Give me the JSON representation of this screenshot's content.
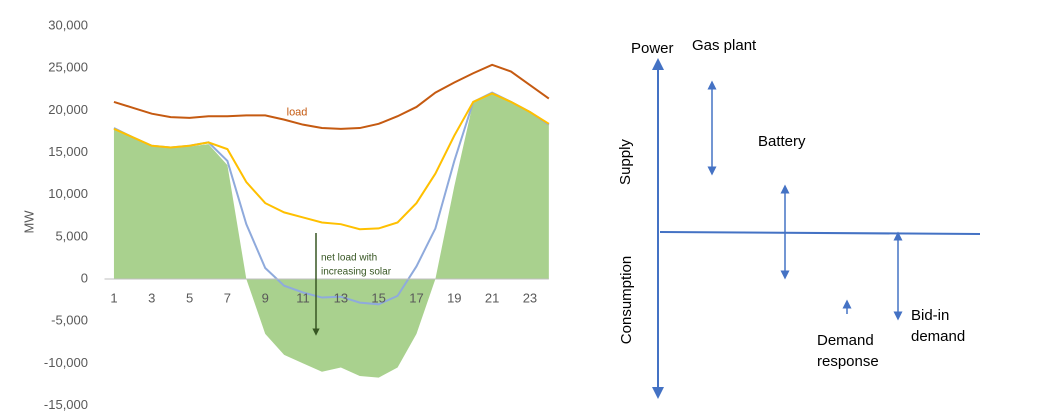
{
  "chart_data": {
    "type": "line",
    "y_label": "MW",
    "x": [
      1,
      2,
      3,
      4,
      5,
      6,
      7,
      8,
      9,
      10,
      11,
      12,
      13,
      14,
      15,
      16,
      17,
      18,
      19,
      20,
      21,
      22,
      23,
      24
    ],
    "xlim": [
      0.5,
      24.5
    ],
    "xticks": [
      1,
      3,
      5,
      7,
      9,
      11,
      13,
      15,
      17,
      19,
      21,
      23
    ],
    "ylim": [
      -15000,
      30000
    ],
    "yticks": [
      {
        "value": -15000,
        "label": "-15,000"
      },
      {
        "value": -10000,
        "label": "-10,000"
      },
      {
        "value": -5000,
        "label": "-5,000"
      },
      0,
      {
        "value": 5000,
        "label": "5,000"
      },
      {
        "value": 10000,
        "label": "10,000"
      },
      {
        "value": 15000,
        "label": "15,000"
      },
      {
        "value": 20000,
        "label": "20,000"
      },
      {
        "value": 25000,
        "label": "25,000"
      },
      {
        "value": 30000,
        "label": "30,000"
      }
    ],
    "grid": false,
    "annotation": [
      "net load with",
      "increasing solar"
    ],
    "series": [
      {
        "type": "area",
        "color": "#a9d18e",
        "values": [
          17800,
          16700,
          15800,
          15600,
          15700,
          16000,
          13500,
          0,
          -6500,
          -9000,
          -10000,
          -11000,
          -10500,
          -11500,
          -11700,
          -10500,
          -6500,
          0,
          11000,
          21000,
          22000,
          21000,
          19700,
          18300
        ]
      },
      {
        "type": "line",
        "color": "#8faadc",
        "values": [
          17900,
          16800,
          15800,
          15600,
          15800,
          16200,
          14000,
          6500,
          1300,
          -800,
          -1600,
          -2200,
          -2100,
          -2800,
          -3000,
          -2000,
          1500,
          6000,
          14000,
          21000,
          22100,
          21000,
          19800,
          18300
        ]
      },
      {
        "type": "line",
        "color": "#ffc000",
        "values": [
          17800,
          16800,
          15800,
          15600,
          15800,
          16200,
          15400,
          11500,
          9000,
          7900,
          7300,
          6700,
          6500,
          5900,
          6000,
          6700,
          9000,
          12500,
          17000,
          21000,
          22000,
          21000,
          19800,
          18400
        ]
      },
      {
        "type": "line",
        "name": "load",
        "color": "#c55a11",
        "values": [
          21000,
          20300,
          19600,
          19200,
          19100,
          19300,
          19300,
          19400,
          19400,
          18900,
          18300,
          17900,
          17800,
          17900,
          18400,
          19300,
          20400,
          22100,
          23300,
          24400,
          25400,
          24600,
          23000,
          21400
        ]
      }
    ]
  },
  "diagram": {
    "power": "Power",
    "supply": "Supply",
    "consumption": "Consumption",
    "gas_plant": "Gas plant",
    "battery": "Battery",
    "demand_response": [
      "Demand",
      "response"
    ],
    "bid_in_demand": [
      "Bid-in",
      "demand"
    ]
  }
}
